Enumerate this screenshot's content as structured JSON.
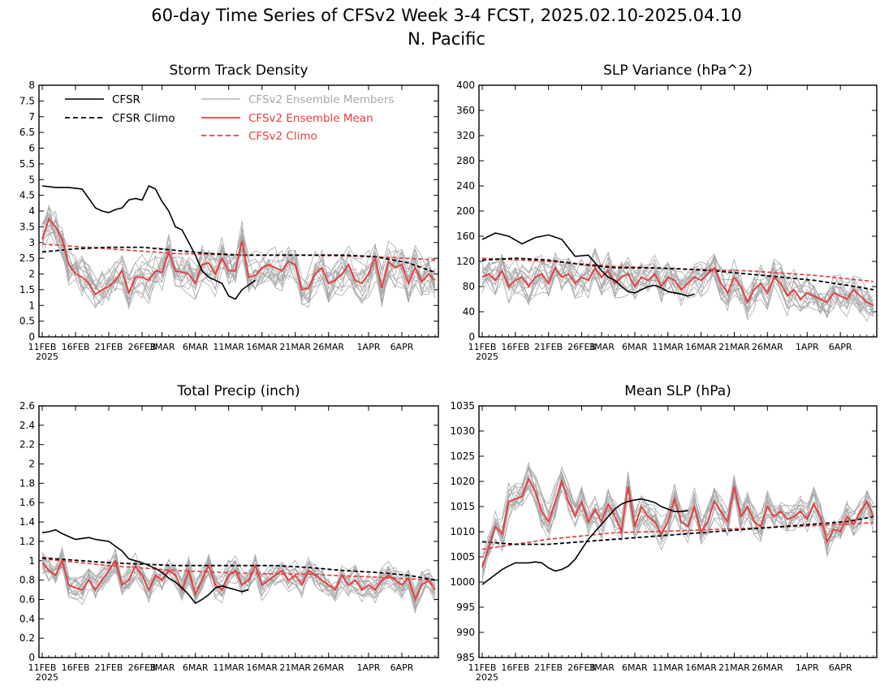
{
  "title_line1": "60-day Time Series of CFSv2 Week 3-4 FCST, 2025.02.10-2025.04.10",
  "title_line2": "N. Pacific",
  "colors": {
    "cfsr": "#000000",
    "cfsr_climo": "#000000",
    "members": "#a8a8a8",
    "ens_mean": "#e83c3c",
    "cfsv2_climo": "#e83c3c"
  },
  "x_axis": {
    "tick_labels": [
      "11FEB",
      "16FEB",
      "21FEB",
      "26FEB",
      "3MAR",
      "6MAR",
      "11MAR",
      "16MAR",
      "21MAR",
      "26MAR",
      "1APR",
      "6APR"
    ],
    "tick_days": [
      0,
      5,
      10,
      15,
      18,
      23,
      28,
      33,
      38,
      43,
      49,
      54
    ],
    "year_label": "2025",
    "days": 60
  },
  "legend": {
    "cfsr": "CFSR",
    "cfsr_climo": "CFSR Climo",
    "members": "CFSv2 Ensemble Members",
    "ens_mean": "CFSv2 Ensemble Mean",
    "cfsv2_climo": "CFSv2 Climo"
  },
  "chart_data": [
    {
      "type": "line",
      "title": "Storm Track Density",
      "ylim": [
        0,
        8
      ],
      "yticks": [
        0,
        0.5,
        1,
        1.5,
        2,
        2.5,
        3,
        3.5,
        4,
        4.5,
        5,
        5.5,
        6,
        6.5,
        7,
        7.5,
        8
      ],
      "x_start": "2025-02-11",
      "series": [
        {
          "name": "CFSR",
          "x": [
            0,
            2,
            4,
            6,
            8,
            9,
            10,
            11,
            12,
            13,
            14,
            15,
            16,
            17,
            18,
            19,
            20,
            21,
            22,
            23,
            24,
            25,
            26,
            27,
            28,
            29,
            30,
            31,
            32
          ],
          "values": [
            4.8,
            4.75,
            4.75,
            4.7,
            4.1,
            4.0,
            3.95,
            4.05,
            4.1,
            4.35,
            4.4,
            4.35,
            4.8,
            4.7,
            4.3,
            4.0,
            3.5,
            3.4,
            3.0,
            2.6,
            2.1,
            1.9,
            1.8,
            1.7,
            1.3,
            1.2,
            1.5,
            1.65,
            1.8
          ]
        },
        {
          "name": "CFSR Climo",
          "x": [
            0,
            5,
            10,
            15,
            20,
            25,
            30,
            35,
            40,
            45,
            50,
            55,
            59
          ],
          "values": [
            2.7,
            2.8,
            2.85,
            2.85,
            2.75,
            2.65,
            2.6,
            2.6,
            2.6,
            2.6,
            2.55,
            2.35,
            2.05
          ]
        },
        {
          "name": "CFSv2 Ensemble Mean",
          "x": [
            0,
            1,
            2,
            3,
            4,
            5,
            6,
            7,
            8,
            9,
            10,
            11,
            12,
            13,
            14,
            15,
            16,
            17,
            18,
            19,
            20,
            21,
            22,
            23,
            24,
            25,
            26,
            27,
            28,
            29,
            30,
            31,
            32,
            33,
            34,
            35,
            36,
            37,
            38,
            39,
            40,
            41,
            42,
            43,
            44,
            45,
            46,
            47,
            48,
            49,
            50,
            51,
            52,
            53,
            54,
            55,
            56,
            57,
            58,
            59
          ],
          "values": [
            3.1,
            3.75,
            3.5,
            3.1,
            2.3,
            2.0,
            1.9,
            1.7,
            1.35,
            1.5,
            1.6,
            1.8,
            2.1,
            1.4,
            1.9,
            1.9,
            1.8,
            2.1,
            2.05,
            2.7,
            2.1,
            2.05,
            2.0,
            1.7,
            2.3,
            2.35,
            2.0,
            2.5,
            2.1,
            2.1,
            3.05,
            1.9,
            1.95,
            2.2,
            2.3,
            2.2,
            2.1,
            2.4,
            2.3,
            1.5,
            1.55,
            2.0,
            2.2,
            1.7,
            1.8,
            2.0,
            2.3,
            1.8,
            1.7,
            2.0,
            2.5,
            1.55,
            2.4,
            2.2,
            2.3,
            1.7,
            2.2,
            1.75,
            2.0,
            1.8
          ]
        },
        {
          "name": "CFSv2 Climo",
          "x": [
            0,
            10,
            20,
            30,
            40,
            50,
            59
          ],
          "values": [
            2.95,
            2.8,
            2.65,
            2.6,
            2.6,
            2.55,
            2.45
          ]
        }
      ],
      "members": {
        "count": 16,
        "spread": 0.85
      }
    },
    {
      "type": "line",
      "title": "SLP Variance (hPa^2)",
      "ylim": [
        0,
        400
      ],
      "yticks": [
        0,
        40,
        80,
        120,
        160,
        200,
        240,
        280,
        320,
        360,
        400
      ],
      "x_start": "2025-02-11",
      "series": [
        {
          "name": "CFSR",
          "x": [
            0,
            2,
            4,
            6,
            8,
            10,
            12,
            14,
            16,
            17,
            18,
            19,
            20,
            21,
            22,
            23,
            24,
            25,
            26,
            27,
            28,
            29,
            30,
            31,
            32
          ],
          "values": [
            155,
            165,
            160,
            148,
            158,
            162,
            155,
            128,
            130,
            118,
            105,
            95,
            90,
            80,
            72,
            70,
            75,
            80,
            82,
            78,
            72,
            70,
            68,
            65,
            68
          ]
        },
        {
          "name": "CFSR Climo",
          "x": [
            0,
            5,
            10,
            15,
            20,
            25,
            30,
            35,
            40,
            45,
            50,
            55,
            59
          ],
          "values": [
            122,
            125,
            122,
            115,
            110,
            110,
            108,
            105,
            100,
            95,
            90,
            82,
            75
          ]
        },
        {
          "name": "CFSv2 Ensemble Mean",
          "x": [
            0,
            1,
            2,
            3,
            4,
            5,
            6,
            7,
            8,
            9,
            10,
            11,
            12,
            13,
            14,
            15,
            16,
            17,
            18,
            19,
            20,
            21,
            22,
            23,
            24,
            25,
            26,
            27,
            28,
            29,
            30,
            31,
            32,
            33,
            34,
            35,
            36,
            37,
            38,
            39,
            40,
            41,
            42,
            43,
            44,
            45,
            46,
            47,
            48,
            49,
            50,
            51,
            52,
            53,
            54,
            55,
            56,
            57,
            58,
            59
          ],
          "values": [
            95,
            100,
            90,
            105,
            80,
            90,
            95,
            80,
            95,
            100,
            85,
            110,
            95,
            100,
            85,
            95,
            90,
            110,
            95,
            105,
            85,
            95,
            100,
            80,
            95,
            90,
            100,
            80,
            95,
            90,
            75,
            85,
            95,
            90,
            100,
            110,
            85,
            70,
            95,
            80,
            55,
            75,
            85,
            70,
            95,
            85,
            65,
            75,
            60,
            70,
            65,
            60,
            55,
            70,
            65,
            60,
            75,
            65,
            55,
            50
          ]
        },
        {
          "name": "CFSv2 Climo",
          "x": [
            0,
            10,
            20,
            30,
            40,
            50,
            59
          ],
          "values": [
            125,
            120,
            112,
            108,
            105,
            98,
            88
          ]
        }
      ],
      "members": {
        "count": 16,
        "spread": 38
      }
    },
    {
      "type": "line",
      "title": "Total Precip (inch)",
      "ylim": [
        0,
        2.6
      ],
      "yticks": [
        0,
        0.2,
        0.4,
        0.6,
        0.8,
        1,
        1.2,
        1.4,
        1.6,
        1.8,
        2,
        2.2,
        2.4,
        2.6
      ],
      "x_start": "2025-02-11",
      "series": [
        {
          "name": "CFSR",
          "x": [
            0,
            1,
            2,
            3,
            4,
            5,
            6,
            7,
            8,
            9,
            10,
            11,
            12,
            13,
            14,
            15,
            16,
            17,
            18,
            19,
            20,
            21,
            22,
            23,
            24,
            25,
            26,
            27,
            28,
            29,
            30,
            31
          ],
          "values": [
            1.29,
            1.3,
            1.32,
            1.28,
            1.25,
            1.22,
            1.23,
            1.24,
            1.22,
            1.21,
            1.2,
            1.15,
            1.1,
            1.02,
            1.0,
            0.98,
            0.95,
            0.92,
            0.88,
            0.82,
            0.78,
            0.72,
            0.65,
            0.56,
            0.6,
            0.65,
            0.72,
            0.74,
            0.72,
            0.7,
            0.68,
            0.7
          ]
        },
        {
          "name": "CFSR Climo",
          "x": [
            0,
            10,
            20,
            25,
            30,
            35,
            40,
            45,
            50,
            55,
            59
          ],
          "values": [
            1.03,
            0.98,
            0.95,
            0.95,
            0.95,
            0.95,
            0.93,
            0.9,
            0.88,
            0.85,
            0.8
          ]
        },
        {
          "name": "CFSv2 Ensemble Mean",
          "x": [
            0,
            1,
            2,
            3,
            4,
            5,
            6,
            7,
            8,
            9,
            10,
            11,
            12,
            13,
            14,
            15,
            16,
            17,
            18,
            19,
            20,
            21,
            22,
            23,
            24,
            25,
            26,
            27,
            28,
            29,
            30,
            31,
            32,
            33,
            34,
            35,
            36,
            37,
            38,
            39,
            40,
            41,
            42,
            43,
            44,
            45,
            46,
            47,
            48,
            49,
            50,
            51,
            52,
            53,
            54,
            55,
            56,
            57,
            58,
            59
          ],
          "values": [
            0.98,
            0.9,
            0.85,
            1.0,
            0.75,
            0.72,
            0.7,
            0.8,
            0.7,
            0.8,
            0.9,
            1.0,
            0.75,
            0.8,
            0.95,
            0.85,
            0.7,
            0.85,
            0.8,
            0.9,
            0.85,
            0.7,
            0.9,
            0.65,
            0.8,
            0.95,
            0.75,
            0.7,
            0.85,
            0.9,
            0.75,
            0.8,
            0.95,
            0.75,
            0.8,
            0.85,
            0.9,
            0.8,
            0.85,
            0.75,
            0.9,
            0.85,
            0.8,
            0.75,
            0.7,
            0.85,
            0.75,
            0.8,
            0.7,
            0.75,
            0.7,
            0.8,
            0.85,
            0.8,
            0.75,
            0.82,
            0.6,
            0.75,
            0.8,
            0.7
          ]
        },
        {
          "name": "CFSv2 Climo",
          "x": [
            0,
            10,
            20,
            30,
            40,
            50,
            59
          ],
          "values": [
            1.02,
            0.95,
            0.9,
            0.87,
            0.86,
            0.83,
            0.8
          ]
        }
      ],
      "members": {
        "count": 16,
        "spread": 0.18
      }
    },
    {
      "type": "line",
      "title": "Mean SLP (hPa)",
      "ylim": [
        985,
        1035
      ],
      "yticks": [
        985,
        990,
        995,
        1000,
        1005,
        1010,
        1015,
        1020,
        1025,
        1030,
        1035
      ],
      "x_start": "2025-02-11",
      "series": [
        {
          "name": "CFSR",
          "x": [
            0,
            1,
            2,
            3,
            4,
            5,
            6,
            7,
            8,
            9,
            10,
            11,
            12,
            13,
            14,
            15,
            16,
            17,
            18,
            19,
            20,
            21,
            22,
            23,
            24,
            25,
            26,
            27,
            28,
            29,
            30,
            31
          ],
          "values": [
            999.5,
            1000.5,
            1001.5,
            1002.5,
            1003.2,
            1003.8,
            1003.8,
            1003.8,
            1004.0,
            1003.8,
            1002.8,
            1002.2,
            1002.5,
            1003.2,
            1004.5,
            1006.5,
            1008.5,
            1010.0,
            1011.5,
            1013.0,
            1014.5,
            1015.5,
            1016.0,
            1016.3,
            1016.5,
            1016.2,
            1015.8,
            1015.0,
            1014.5,
            1014.0,
            1014.0,
            1014.2
          ]
        },
        {
          "name": "CFSR Climo",
          "x": [
            0,
            5,
            10,
            15,
            20,
            25,
            30,
            35,
            40,
            45,
            50,
            55,
            59
          ],
          "values": [
            1008.0,
            1007.5,
            1007.5,
            1008.0,
            1008.5,
            1009.0,
            1009.5,
            1010.0,
            1010.5,
            1011.0,
            1011.5,
            1012.0,
            1013.0
          ]
        },
        {
          "name": "CFSv2 Ensemble Mean",
          "x": [
            0,
            1,
            2,
            3,
            4,
            5,
            6,
            7,
            8,
            9,
            10,
            11,
            12,
            13,
            14,
            15,
            16,
            17,
            18,
            19,
            20,
            21,
            22,
            23,
            24,
            25,
            26,
            27,
            28,
            29,
            30,
            31,
            32,
            33,
            34,
            35,
            36,
            37,
            38,
            39,
            40,
            41,
            42,
            43,
            44,
            45,
            46,
            47,
            48,
            49,
            50,
            51,
            52,
            53,
            54,
            55,
            56,
            57,
            58,
            59
          ],
          "values": [
            1003.0,
            1007.0,
            1011.0,
            1009.5,
            1016.0,
            1016.5,
            1017.0,
            1020.5,
            1018.0,
            1014.0,
            1012.0,
            1016.0,
            1020.0,
            1016.0,
            1013.0,
            1016.0,
            1012.0,
            1014.5,
            1012.0,
            1015.5,
            1013.0,
            1010.0,
            1019.0,
            1011.0,
            1015.0,
            1013.0,
            1012.0,
            1009.5,
            1012.0,
            1016.5,
            1012.0,
            1011.0,
            1015.0,
            1010.0,
            1012.0,
            1016.0,
            1014.0,
            1012.0,
            1019.0,
            1013.0,
            1015.0,
            1012.0,
            1011.0,
            1015.0,
            1013.0,
            1014.0,
            1012.5,
            1013.0,
            1014.0,
            1012.5,
            1015.5,
            1013.0,
            1008.0,
            1010.5,
            1010.0,
            1013.0,
            1011.5,
            1014.0,
            1016.0,
            1013.0
          ]
        },
        {
          "name": "CFSv2 Climo",
          "x": [
            0,
            10,
            20,
            30,
            40,
            50,
            59
          ],
          "values": [
            1006.5,
            1008.5,
            1009.8,
            1010.2,
            1010.7,
            1011.2,
            1011.8
          ]
        }
      ],
      "members": {
        "count": 16,
        "spread": 4.2
      }
    }
  ]
}
